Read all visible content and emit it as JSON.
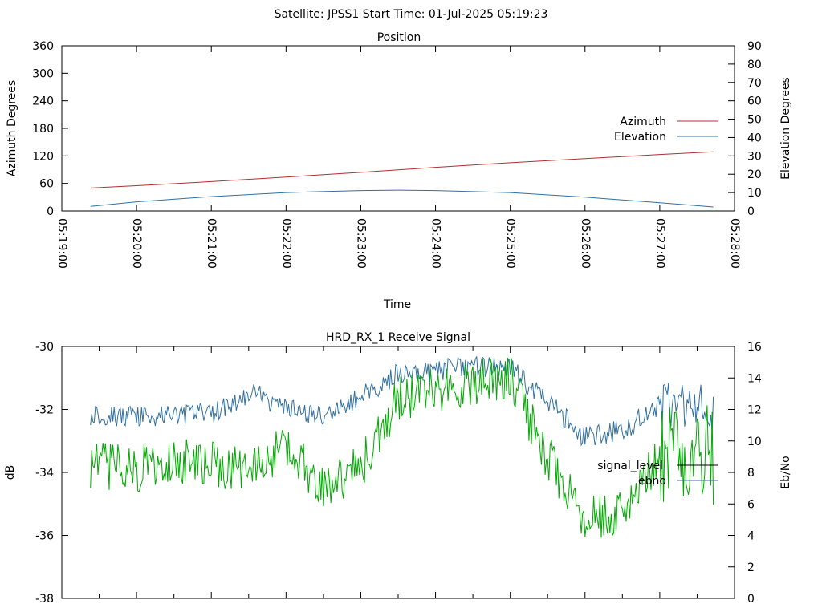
{
  "header": {
    "title": "Satellite: JPSS1    Start Time: 01-Jul-2025 05:19:23"
  },
  "chart_data": [
    {
      "type": "line",
      "title": "Position",
      "xlabel": "Time",
      "ylabel": "Azimuth Degrees",
      "y2label": "Elevation Degrees",
      "xlim": [
        "05:19:00",
        "05:28:00"
      ],
      "x_ticks": [
        "05:19:00",
        "05:20:00",
        "05:21:00",
        "05:22:00",
        "05:23:00",
        "05:24:00",
        "05:25:00",
        "05:26:00",
        "05:27:00",
        "05:28:00"
      ],
      "ylim": [
        0,
        360
      ],
      "y_ticks": [
        0,
        60,
        120,
        180,
        240,
        300,
        360
      ],
      "y2lim": [
        0,
        90
      ],
      "y2_ticks": [
        0,
        10,
        20,
        30,
        40,
        50,
        60,
        70,
        80,
        90
      ],
      "grid": false,
      "legend_position": "right",
      "series": [
        {
          "name": "Azimuth",
          "axis": "y",
          "color": "#b03030",
          "x": [
            "05:19:23",
            "05:20:00",
            "05:21:00",
            "05:22:00",
            "05:23:00",
            "05:24:00",
            "05:25:00",
            "05:26:00",
            "05:27:00",
            "05:27:43"
          ],
          "y": [
            50,
            55,
            64,
            74,
            84,
            95,
            105,
            114,
            123,
            129
          ]
        },
        {
          "name": "Elevation",
          "axis": "y2",
          "color": "#3070a0",
          "x": [
            "05:19:23",
            "05:20:00",
            "05:21:00",
            "05:22:00",
            "05:23:00",
            "05:23:30",
            "05:24:00",
            "05:25:00",
            "05:26:00",
            "05:27:00",
            "05:27:43"
          ],
          "y": [
            2.5,
            5,
            7.8,
            10,
            11.1,
            11.3,
            11.1,
            10,
            7.5,
            4.5,
            2.2
          ]
        }
      ]
    },
    {
      "type": "line",
      "title": "HRD_RX_1 Receive Signal",
      "ylabel": "dB",
      "y2label": "Eb/No",
      "ylim": [
        -38,
        -30
      ],
      "y_ticks": [
        -38,
        -36,
        -34,
        -32,
        -30
      ],
      "y2lim": [
        0,
        16
      ],
      "y2_ticks": [
        0,
        2,
        4,
        6,
        8,
        10,
        12,
        14,
        16
      ],
      "grid": false,
      "legend_position": "right",
      "series": [
        {
          "name": "signal_level",
          "axis": "y",
          "color": "#000000",
          "x": [],
          "y": []
        },
        {
          "name": "ebno",
          "axis": "y2",
          "color": "#3070a0",
          "x": [
            "05:19:23",
            "05:20:00",
            "05:21:00",
            "05:21:35",
            "05:22:00",
            "05:22:30",
            "05:23:00",
            "05:23:30",
            "05:24:00",
            "05:24:30",
            "05:25:00",
            "05:25:30",
            "05:26:00",
            "05:26:30",
            "05:27:00",
            "05:27:43"
          ],
          "y": [
            11.7,
            11.5,
            11.8,
            13,
            12,
            11.5,
            12.8,
            14.3,
            14.5,
            14.7,
            14.6,
            12.5,
            10.2,
            10.7,
            12.2,
            12
          ]
        },
        {
          "name": "",
          "axis": "y2",
          "color": "#00aa00",
          "x": [
            "05:19:23",
            "05:20:00",
            "05:20:30",
            "05:21:00",
            "05:21:30",
            "05:22:00",
            "05:22:30",
            "05:23:00",
            "05:23:30",
            "05:24:00",
            "05:24:30",
            "05:25:00",
            "05:25:30",
            "05:26:00",
            "05:26:30",
            "05:27:00",
            "05:27:30",
            "05:27:43"
          ],
          "y": [
            8.5,
            8.2,
            8.8,
            8.5,
            8.0,
            9.6,
            7.2,
            8.3,
            12.6,
            13.3,
            13.8,
            14.0,
            9.0,
            5.0,
            5.5,
            9.0,
            9.5,
            9.0
          ]
        }
      ]
    }
  ]
}
